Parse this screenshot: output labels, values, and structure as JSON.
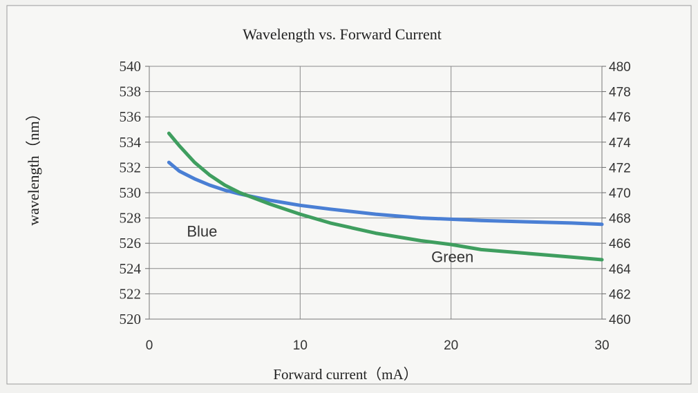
{
  "chart_data": {
    "type": "line",
    "title": "Wavelength vs. Forward Current",
    "xlabel": "Forward current（mA）",
    "ylabel": "wavelength（nm）",
    "xlim": [
      0,
      30
    ],
    "x_ticks": [
      0,
      10,
      20,
      30
    ],
    "ylim": [
      520,
      540
    ],
    "y_ticks": [
      520,
      522,
      524,
      526,
      528,
      530,
      532,
      534,
      536,
      538,
      540
    ],
    "y2lim": [
      460,
      480
    ],
    "y2_ticks": [
      460,
      462,
      464,
      466,
      468,
      470,
      472,
      474,
      476,
      478,
      480
    ],
    "grid": true,
    "series": [
      {
        "name": "Blue",
        "color": "#4a7fd4",
        "axis": "left",
        "x": [
          1.3,
          2,
          3,
          4,
          5,
          6,
          8,
          10,
          12,
          15,
          18,
          20,
          22,
          25,
          28,
          30
        ],
        "y": [
          532.4,
          531.7,
          531.1,
          530.6,
          530.2,
          529.9,
          529.4,
          529.0,
          528.7,
          528.3,
          528.0,
          527.9,
          527.8,
          527.7,
          527.6,
          527.5
        ]
      },
      {
        "name": "Green",
        "color": "#3f9e5f",
        "axis": "left",
        "x": [
          1.3,
          2,
          3,
          4,
          5,
          6,
          8,
          10,
          12,
          15,
          18,
          20,
          22,
          25,
          28,
          30
        ],
        "y": [
          534.7,
          533.7,
          532.4,
          531.4,
          530.6,
          530.0,
          529.1,
          528.3,
          527.6,
          526.8,
          526.2,
          525.9,
          525.5,
          525.2,
          524.9,
          524.7
        ]
      }
    ],
    "annotations": [
      {
        "text": "Blue",
        "x": 1.3,
        "y": 526.9
      },
      {
        "text": "Green",
        "x": 17.5,
        "y": 524.9
      }
    ]
  }
}
